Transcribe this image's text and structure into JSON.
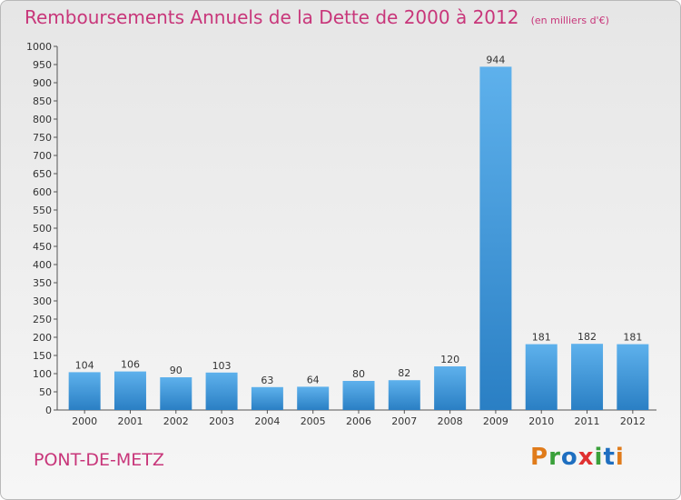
{
  "chart_data": {
    "type": "bar",
    "title": "Remboursements Annuels de la Dette de 2000 à 2012",
    "subtitle": "(en milliers d'€)",
    "categories": [
      "2000",
      "2001",
      "2002",
      "2003",
      "2004",
      "2005",
      "2006",
      "2007",
      "2008",
      "2009",
      "2010",
      "2011",
      "2012"
    ],
    "values": [
      104,
      106,
      90,
      103,
      63,
      64,
      80,
      82,
      120,
      944,
      181,
      182,
      181
    ],
    "ylim": [
      0,
      1000
    ],
    "yticks": [
      0,
      50,
      100,
      150,
      200,
      250,
      300,
      350,
      400,
      450,
      500,
      550,
      600,
      650,
      700,
      750,
      800,
      850,
      900,
      950,
      1000
    ],
    "grid": false,
    "bar_color": "#4a9fe0"
  },
  "commune": "PONT-DE-METZ",
  "logo": {
    "text": "Proxiti",
    "letter_colors": [
      "#e07b1a",
      "#3aa03a",
      "#1f6fc0",
      "#e03030",
      "#3aa03a",
      "#1f6fc0",
      "#e07b1a"
    ]
  }
}
